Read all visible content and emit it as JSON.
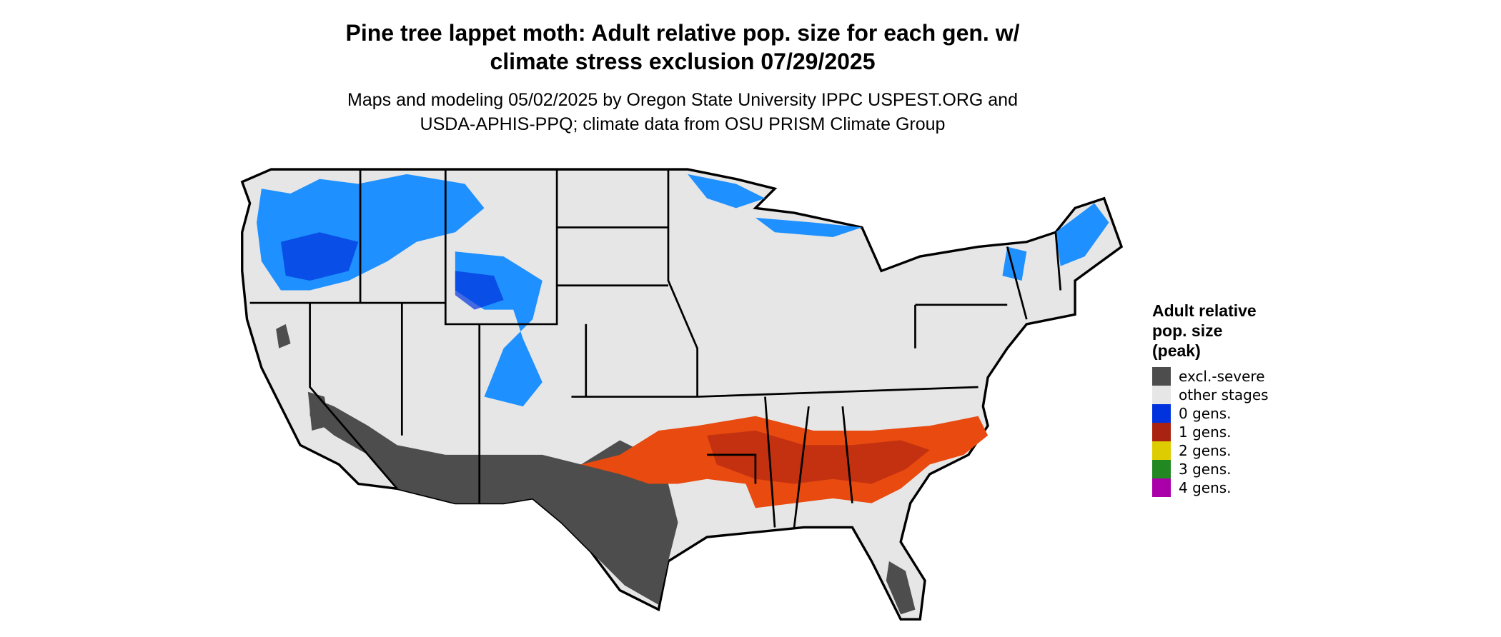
{
  "title": [
    "Pine tree lappet moth: Adult relative pop. size for each gen. w/",
    "climate stress exclusion 07/29/2025"
  ],
  "subtitle": [
    "Maps and modeling 05/02/2025 by Oregon State University IPPC USPEST.ORG and",
    "USDA-APHIS-PPQ; climate data from OSU PRISM Climate Group"
  ],
  "legend": {
    "title": [
      "Adult relative",
      "pop. size",
      "(peak)"
    ],
    "items": [
      {
        "label": "excl.-severe",
        "color": "#4d4d4d"
      },
      {
        "label": "other stages",
        "color": "#e6e6e6"
      },
      {
        "label": "0 gens.",
        "color": "#0033dd"
      },
      {
        "label": "1 gens.",
        "color": "#aa2211"
      },
      {
        "label": "2 gens.",
        "color": "#ddcc00"
      },
      {
        "label": "3 gens.",
        "color": "#228822"
      },
      {
        "label": "4 gens.",
        "color": "#aa00aa"
      }
    ]
  }
}
